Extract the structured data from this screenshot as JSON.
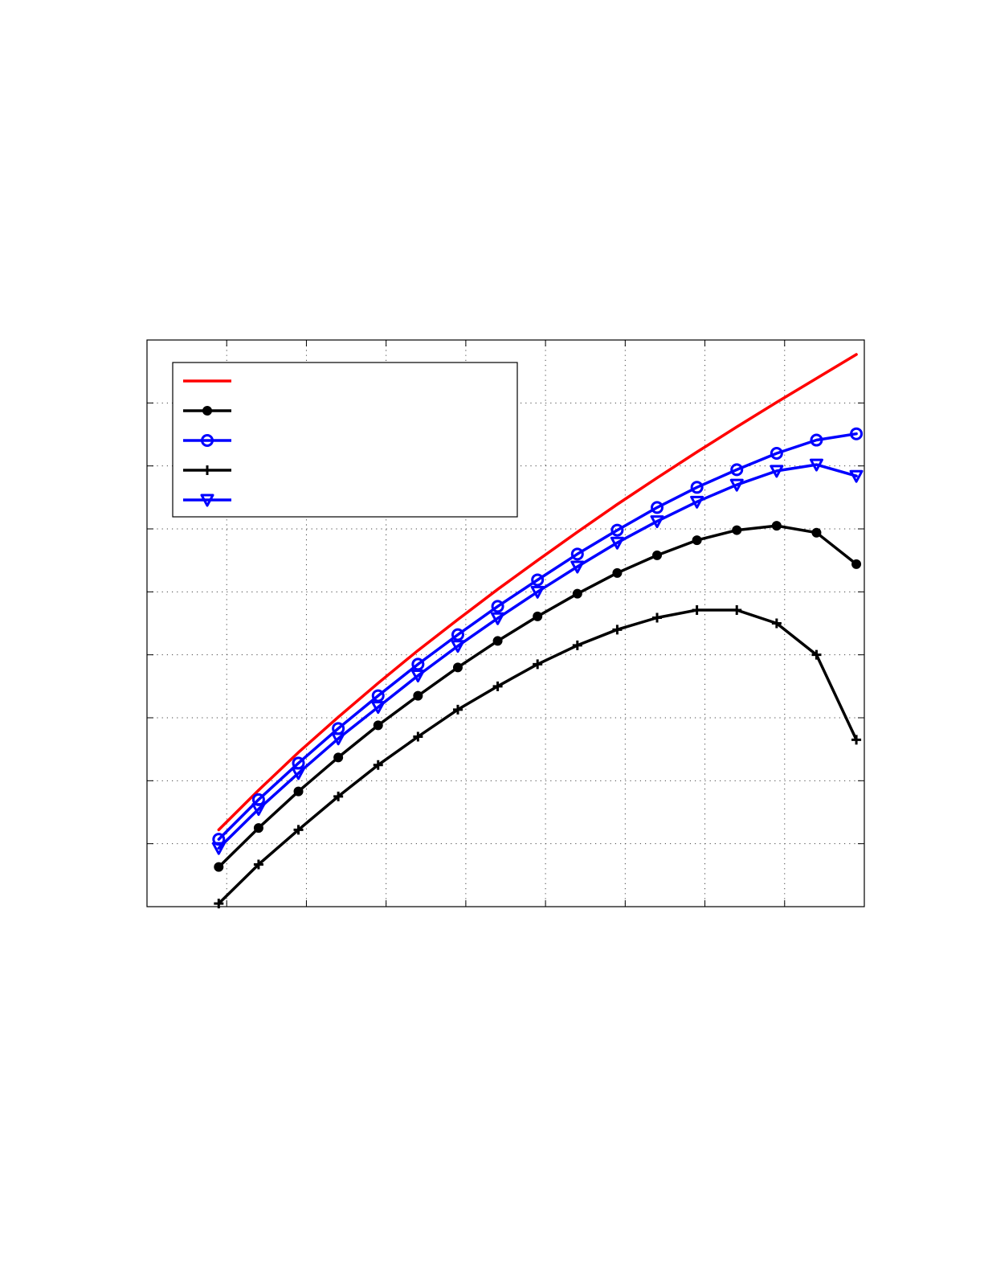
{
  "chart_data": {
    "type": "line",
    "title": "",
    "xlabel": "",
    "ylabel": "",
    "xlim": [
      0,
      9
    ],
    "ylim": [
      0,
      9
    ],
    "x_ticks": [
      0,
      1,
      2,
      3,
      4,
      5,
      6,
      7,
      8,
      9
    ],
    "y_ticks": [
      0,
      1,
      2,
      3,
      4,
      5,
      6,
      7,
      8,
      9
    ],
    "x_tick_labels": [],
    "y_tick_labels": [],
    "grid": true,
    "legend_position": "top-left",
    "series": [
      {
        "color": "#ff0000",
        "marker": "none",
        "x": [
          0.9,
          1.4,
          1.9,
          2.4,
          2.9,
          3.4,
          3.9,
          4.4,
          4.9,
          5.4,
          5.9,
          6.4,
          6.9,
          7.4,
          7.9,
          8.4,
          8.9
        ],
        "y": [
          1.22,
          1.85,
          2.45,
          3.01,
          3.55,
          4.07,
          4.56,
          5.04,
          5.5,
          5.95,
          6.39,
          6.81,
          7.22,
          7.62,
          8.01,
          8.39,
          8.77
        ]
      },
      {
        "color": "#000000",
        "marker": "dot",
        "x": [
          0.9,
          1.4,
          1.9,
          2.4,
          2.9,
          3.4,
          3.9,
          4.4,
          4.9,
          5.4,
          5.9,
          6.4,
          6.9,
          7.4,
          7.9,
          8.4,
          8.9
        ],
        "y": [
          0.63,
          1.25,
          1.83,
          2.37,
          2.88,
          3.35,
          3.8,
          4.22,
          4.61,
          4.97,
          5.3,
          5.58,
          5.82,
          5.98,
          6.05,
          5.94,
          5.44
        ]
      },
      {
        "color": "#0000ff",
        "marker": "circle",
        "x": [
          0.9,
          1.4,
          1.9,
          2.4,
          2.9,
          3.4,
          3.9,
          4.4,
          4.9,
          5.4,
          5.9,
          6.4,
          6.9,
          7.4,
          7.9,
          8.4,
          8.9
        ],
        "y": [
          1.07,
          1.7,
          2.28,
          2.83,
          3.35,
          3.85,
          4.32,
          4.77,
          5.19,
          5.6,
          5.98,
          6.34,
          6.66,
          6.94,
          7.2,
          7.41,
          7.51
        ]
      },
      {
        "color": "#000000",
        "marker": "plus",
        "x": [
          0.9,
          1.4,
          1.9,
          2.4,
          2.9,
          3.4,
          3.9,
          4.4,
          4.9,
          5.4,
          5.9,
          6.4,
          6.9,
          7.4,
          7.9,
          8.4,
          8.9
        ],
        "y": [
          0.05,
          0.67,
          1.22,
          1.75,
          2.25,
          2.7,
          3.13,
          3.5,
          3.85,
          4.15,
          4.4,
          4.59,
          4.71,
          4.71,
          4.5,
          4.0,
          2.65
        ]
      },
      {
        "color": "#0000ff",
        "marker": "triangle-down",
        "x": [
          0.9,
          1.4,
          1.9,
          2.4,
          2.9,
          3.4,
          3.9,
          4.4,
          4.9,
          5.4,
          5.9,
          6.4,
          6.9,
          7.4,
          7.9,
          8.4,
          8.9
        ],
        "y": [
          0.93,
          1.55,
          2.12,
          2.67,
          3.17,
          3.67,
          4.14,
          4.58,
          5.0,
          5.4,
          5.78,
          6.12,
          6.43,
          6.7,
          6.92,
          7.02,
          6.84
        ]
      }
    ],
    "legend": {
      "entries": [
        {},
        {},
        {},
        {},
        {}
      ]
    }
  }
}
